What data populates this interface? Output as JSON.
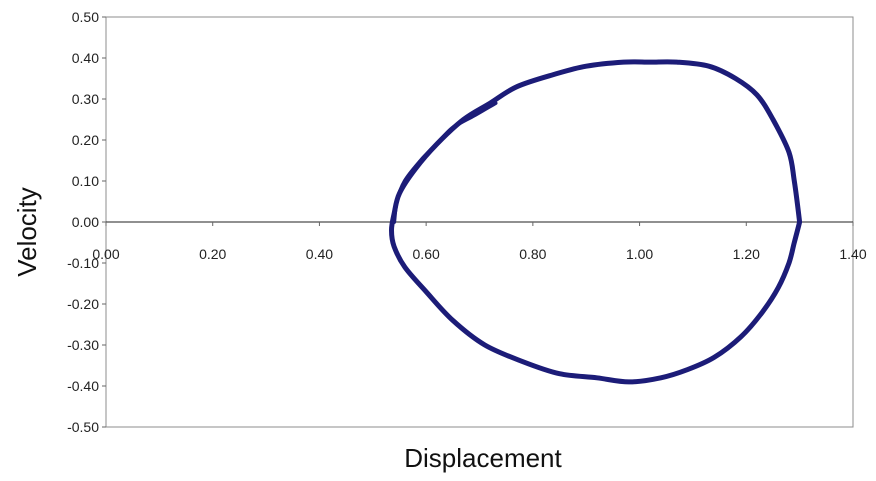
{
  "chart_data": {
    "type": "line",
    "title": "",
    "xlabel": "Displacement",
    "ylabel": "Velocity",
    "xlim": [
      0,
      1.4
    ],
    "ylim": [
      -0.5,
      0.5
    ],
    "x_ticks": [
      "0.00",
      "0.20",
      "0.40",
      "0.60",
      "0.80",
      "1.00",
      "1.20",
      "1.40"
    ],
    "y_ticks": [
      "0.50",
      "0.40",
      "0.30",
      "0.20",
      "0.10",
      "0.00",
      "-0.10",
      "-0.20",
      "-0.30",
      "-0.40",
      "-0.50"
    ],
    "grid": false,
    "legend": "none",
    "line_color": "#1c1c78",
    "series": [
      {
        "x": [
          1.3,
          1.29,
          1.28,
          1.25,
          1.22,
          1.18,
          1.13,
          1.07,
          1.02,
          0.97,
          0.9,
          0.84,
          0.77,
          0.72,
          0.67,
          0.62,
          0.58,
          0.55,
          0.54,
          0.535,
          0.54,
          0.56,
          0.6,
          0.65,
          0.71,
          0.78,
          0.85,
          0.92,
          0.98,
          1.04,
          1.09,
          1.14,
          1.19,
          1.23,
          1.26,
          1.28,
          1.29,
          1.3
        ],
        "y": [
          0.0,
          0.1,
          0.17,
          0.25,
          0.31,
          0.35,
          0.38,
          0.39,
          0.39,
          0.39,
          0.38,
          0.36,
          0.33,
          0.29,
          0.25,
          0.19,
          0.13,
          0.07,
          0.02,
          -0.02,
          -0.06,
          -0.11,
          -0.17,
          -0.24,
          -0.3,
          -0.34,
          -0.37,
          -0.38,
          -0.39,
          -0.38,
          -0.36,
          -0.33,
          -0.28,
          -0.22,
          -0.16,
          -0.1,
          -0.05,
          0.0
        ]
      },
      {
        "x": [
          0.54,
          0.545,
          0.56,
          0.59,
          0.62,
          0.65,
          0.69,
          0.73
        ],
        "y": [
          0.0,
          0.05,
          0.1,
          0.15,
          0.19,
          0.23,
          0.26,
          0.29
        ]
      }
    ]
  }
}
